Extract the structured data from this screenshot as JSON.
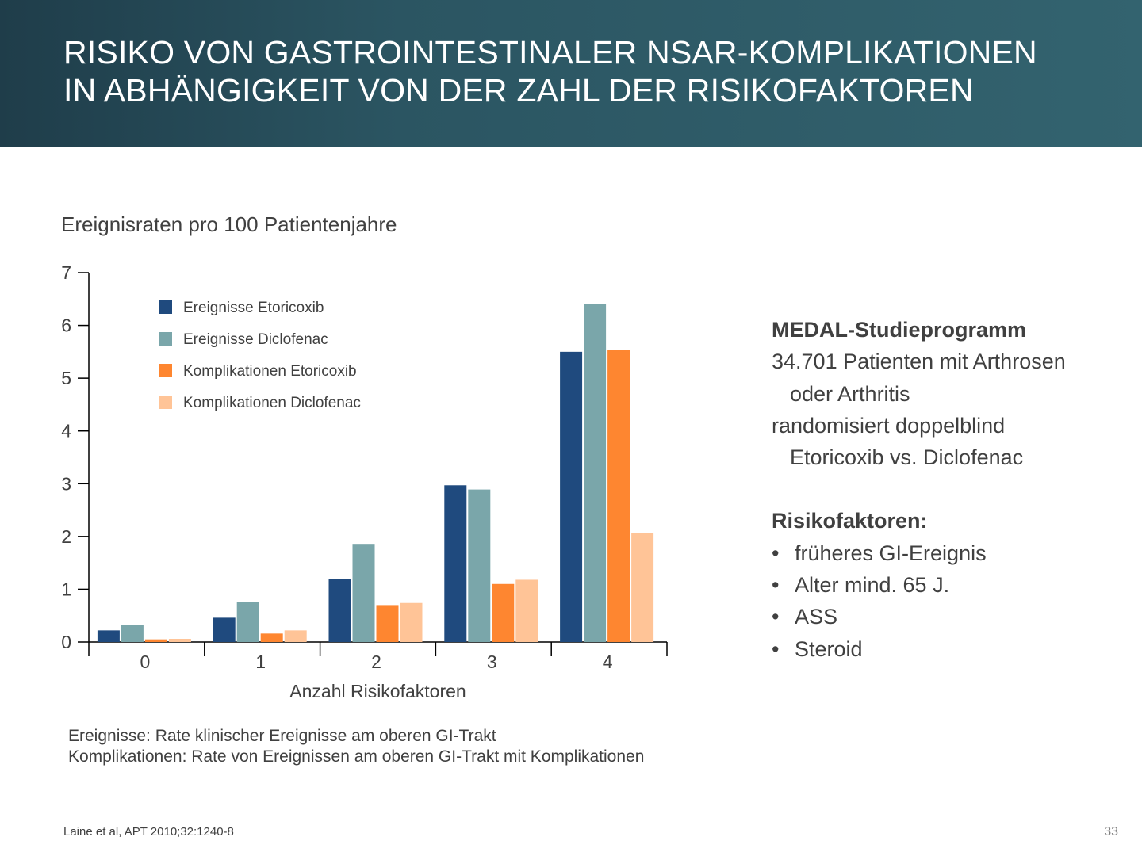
{
  "title": {
    "line1": "RISIKO VON GASTROINTESTINALER NSAR-KOMPLIKATIONEN",
    "line2": "IN ABHÄNGIGKEIT VON DER ZAHL DER RISIKOFAKTOREN"
  },
  "chart_data": {
    "type": "bar",
    "title": "",
    "ylabel": "Ereignisraten pro 100 Patientenjahre",
    "xlabel": "Anzahl Risikofaktoren",
    "categories": [
      "0",
      "1",
      "2",
      "3",
      "4"
    ],
    "ylim": [
      0,
      7
    ],
    "yticks": [
      "0",
      "1",
      "2",
      "3",
      "4",
      "5",
      "6",
      "7"
    ],
    "legend_position": "top-left",
    "grid": false,
    "series": [
      {
        "name": "Ereignisse Etoricoxib",
        "color": "#1f4a7e",
        "values": [
          0.22,
          0.46,
          1.2,
          2.97,
          5.5
        ]
      },
      {
        "name": "Ereignisse Diclofenac",
        "color": "#7aa6aa",
        "values": [
          0.33,
          0.76,
          1.86,
          2.89,
          6.4
        ]
      },
      {
        "name": "Komplikationen Etoricoxib",
        "color": "#fe8630",
        "values": [
          0.05,
          0.16,
          0.7,
          1.1,
          5.53
        ]
      },
      {
        "name": "Komplikationen Diclofenac",
        "color": "#ffc497",
        "values": [
          0.06,
          0.22,
          0.74,
          1.18,
          2.06
        ]
      }
    ]
  },
  "side": {
    "heading1": "MEDAL-Studieprogramm",
    "line1": "34.701 Patienten mit Arthrosen",
    "line2": "oder Arthritis",
    "line3": "randomisiert doppelblind",
    "line4": "Etoricoxib vs. Diclofenac",
    "heading2": "Risikofaktoren:",
    "bullets": [
      "früheres GI-Ereignis",
      "Alter mind. 65 J.",
      "ASS",
      "Steroid"
    ]
  },
  "notes": {
    "line1": "Ereignisse: Rate klinischer Ereignisse am oberen GI-Trakt",
    "line2": "Komplikationen: Rate von Ereignissen am oberen GI-Trakt mit Komplikationen"
  },
  "citation": "Laine et al, APT 2010;32:1240-8",
  "page_number": "33"
}
